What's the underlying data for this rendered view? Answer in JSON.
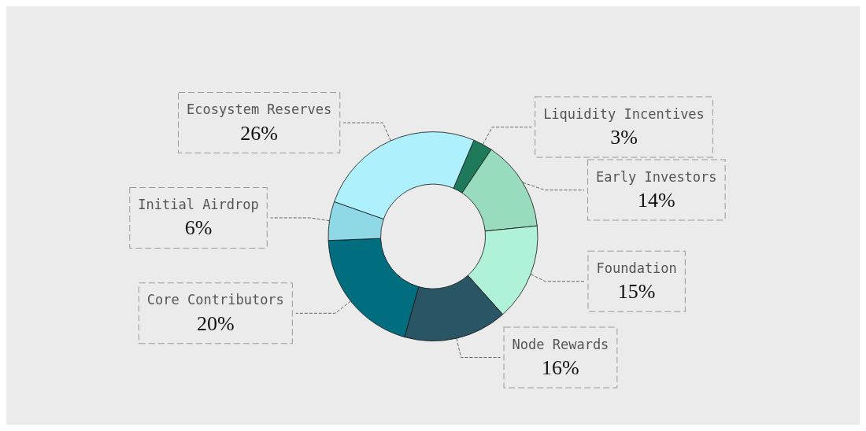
{
  "chart_data": {
    "type": "donut",
    "categories": [
      "Liquidity Incentives",
      "Early Investors",
      "Foundation",
      "Node Rewards",
      "Core Contributors",
      "Initial Airdrop",
      "Ecosystem Reserves"
    ],
    "values": [
      3,
      14,
      15,
      16,
      20,
      6,
      26
    ],
    "value_labels": [
      "3%",
      "14%",
      "15%",
      "16%",
      "20%",
      "6%",
      "26%"
    ],
    "colors": [
      "#1e7a5a",
      "#98dbbd",
      "#b0f2d8",
      "#2a5565",
      "#006e7e",
      "#8fd9e6",
      "#aef0fc"
    ],
    "legend": false
  }
}
